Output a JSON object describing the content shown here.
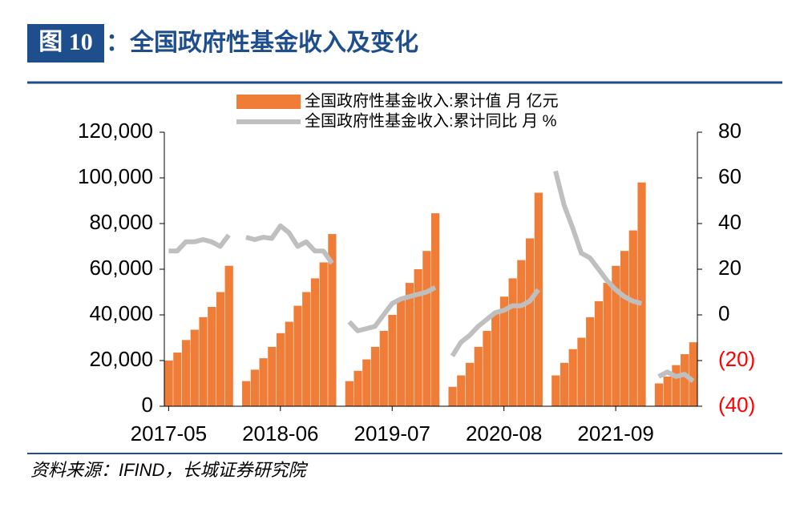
{
  "header": {
    "label": "图 10",
    "title": "：全国政府性基金收入及变化"
  },
  "source": "资料来源：IFIND，长城证券研究院",
  "chart_data": {
    "type": "bar_line",
    "categories": [
      "2017-05",
      null,
      null,
      null,
      null,
      null,
      null,
      null,
      null,
      null,
      null,
      null,
      null,
      "2018-06",
      null,
      null,
      null,
      null,
      null,
      null,
      null,
      null,
      null,
      null,
      null,
      null,
      "2019-07",
      null,
      null,
      null,
      null,
      null,
      null,
      null,
      null,
      null,
      null,
      null,
      null,
      "2020-08",
      null,
      null,
      null,
      null,
      null,
      null,
      null,
      null,
      null,
      null,
      null,
      null,
      "2021-09",
      null,
      null,
      null,
      null,
      null,
      null,
      null,
      null,
      null
    ],
    "series": [
      {
        "name": "全国政府性基金收入:累计值 月 亿元",
        "type": "bar",
        "color": "#ef7d37",
        "axis": "y",
        "values": [
          20000,
          23500,
          29000,
          33500,
          39000,
          43500,
          50000,
          61500,
          null,
          11000,
          16000,
          21000,
          26000,
          32000,
          37000,
          44000,
          50000,
          56000,
          63000,
          75400,
          null,
          11000,
          15500,
          20500,
          26000,
          33000,
          40000,
          47000,
          54000,
          60000,
          68000,
          84500,
          null,
          8500,
          13500,
          19000,
          26000,
          33000,
          41000,
          48000,
          56000,
          64000,
          73500,
          93500,
          null,
          13500,
          19000,
          25000,
          30000,
          39000,
          46000,
          54000,
          61500,
          68000,
          77000,
          98000,
          null,
          10000,
          13000,
          18000,
          22800,
          28000
        ]
      },
      {
        "name": "全国政府性基金收入:累计同比 月 %",
        "type": "line",
        "color": "#bfbfbf",
        "axis": "y2",
        "values": [
          28,
          28,
          32,
          32,
          33,
          32,
          30,
          35,
          null,
          34,
          33,
          34,
          33.5,
          39,
          36,
          30,
          32,
          28,
          28,
          22.6,
          null,
          -3,
          -7,
          -6,
          -5,
          0,
          5,
          7,
          8,
          9,
          10,
          12,
          null,
          -18,
          -12,
          -9,
          -5,
          -2,
          1,
          2,
          4,
          4,
          6,
          11,
          null,
          63,
          48,
          38,
          27,
          25,
          20,
          15,
          11,
          8,
          6,
          5,
          null,
          -27,
          -25,
          -27,
          -26,
          -29
        ]
      }
    ],
    "ylim": [
      0,
      120000
    ],
    "yticks": [
      0,
      {
        "value": 20000,
        "label": "20,000"
      },
      {
        "value": 40000,
        "label": "40,000"
      },
      {
        "value": 60000,
        "label": "60,000"
      },
      {
        "value": 80000,
        "label": "80,000"
      },
      {
        "value": 100000,
        "label": "100,000"
      },
      {
        "value": 120000,
        "label": "120,000"
      }
    ],
    "y2lim": [
      -40,
      80
    ],
    "y2ticks": [
      {
        "value": -40,
        "label": "(40)"
      },
      {
        "value": -20,
        "label": "(20)"
      },
      0,
      20,
      40,
      60,
      80
    ],
    "y2_negative_tick_color": "#ff0000",
    "legend": "top"
  }
}
